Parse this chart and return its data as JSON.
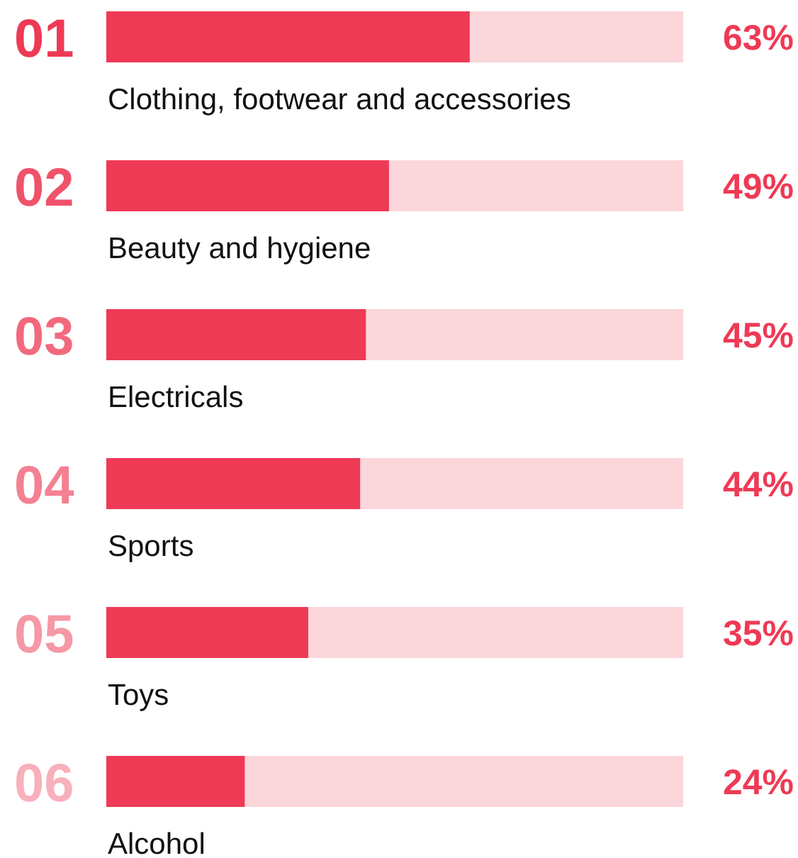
{
  "chart_data": {
    "type": "bar",
    "orientation": "horizontal",
    "categories": [
      "Clothing, footwear and accessories",
      "Beauty and hygiene",
      "Electricals",
      "Sports",
      "Toys",
      "Alcohol"
    ],
    "values": [
      63,
      49,
      45,
      44,
      35,
      24
    ],
    "value_labels": [
      "63%",
      "49%",
      "45%",
      "44%",
      "35%",
      "24%"
    ],
    "color": "#ee3a55",
    "xlim": [
      0,
      100
    ],
    "annotations": [
      "01",
      "02",
      "03",
      "04",
      "05",
      "06"
    ]
  }
}
